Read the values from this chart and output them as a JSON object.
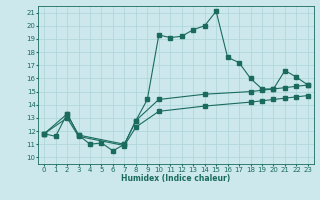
{
  "xlabel": "Humidex (Indice chaleur)",
  "bg_color": "#cce8ec",
  "line_color": "#1a6b5e",
  "grid_color": "#b0d8dc",
  "xlim": [
    -0.5,
    23.5
  ],
  "ylim": [
    9.5,
    21.5
  ],
  "xticks": [
    0,
    1,
    2,
    3,
    4,
    5,
    6,
    7,
    8,
    9,
    10,
    11,
    12,
    13,
    14,
    15,
    16,
    17,
    18,
    19,
    20,
    21,
    22,
    23
  ],
  "yticks": [
    10,
    11,
    12,
    13,
    14,
    15,
    16,
    17,
    18,
    19,
    20,
    21
  ],
  "curve1_x": [
    0,
    1,
    2,
    3,
    4,
    5,
    6,
    7,
    8,
    9,
    10,
    11,
    12,
    13,
    14,
    15,
    16,
    17,
    18,
    19,
    20,
    21,
    22,
    23
  ],
  "curve1_y": [
    11.8,
    11.6,
    13.3,
    11.7,
    11.0,
    11.1,
    10.5,
    11.0,
    12.8,
    14.4,
    19.3,
    19.1,
    19.2,
    19.7,
    20.0,
    21.1,
    17.6,
    17.2,
    16.0,
    15.2,
    15.2,
    16.6,
    16.1,
    15.5
  ],
  "curve2_x": [
    0,
    2,
    3,
    7,
    8,
    10,
    14,
    18,
    19,
    20,
    21,
    22,
    23
  ],
  "curve2_y": [
    11.8,
    13.3,
    11.7,
    11.0,
    12.8,
    14.4,
    14.8,
    15.0,
    15.1,
    15.2,
    15.3,
    15.4,
    15.5
  ],
  "curve3_x": [
    0,
    2,
    3,
    7,
    8,
    10,
    14,
    18,
    19,
    20,
    21,
    22,
    23
  ],
  "curve3_y": [
    11.8,
    13.0,
    11.6,
    10.9,
    12.3,
    13.5,
    13.9,
    14.2,
    14.3,
    14.4,
    14.5,
    14.6,
    14.7
  ]
}
